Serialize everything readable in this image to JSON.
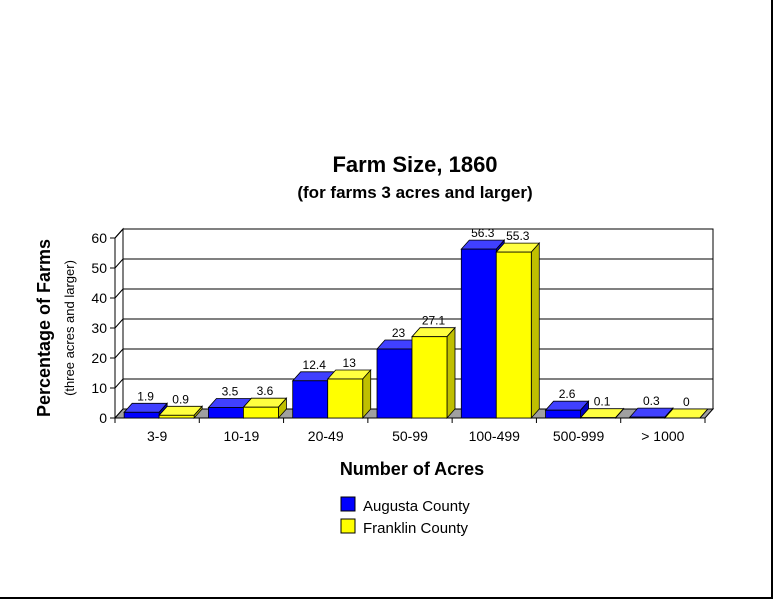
{
  "chart_data": {
    "type": "bar",
    "title": "Farm Size, 1860",
    "subtitle": "(for farms 3 acres and larger)",
    "xlabel": "Number of  Acres",
    "ylabel": "Percentage of Farms",
    "ylabel_sub": "(three acres and larger)",
    "ylim": [
      0,
      60
    ],
    "yticks": [
      "0",
      "10",
      "20",
      "30",
      "40",
      "50",
      "60"
    ],
    "categories": [
      "3-9",
      "10-19",
      "20-49",
      "50-99",
      "100-499",
      "500-999",
      "> 1000"
    ],
    "series": [
      {
        "name": "Augusta County",
        "values": [
          1.9,
          3.5,
          12.4,
          23,
          56.3,
          2.6,
          0.3
        ],
        "color": "#0000ff"
      },
      {
        "name": "Franklin County",
        "values": [
          0.9,
          3.6,
          13,
          27.1,
          55.3,
          0.1,
          0
        ],
        "color": "#ffff00"
      }
    ],
    "grid": true,
    "legend": "bottom"
  }
}
